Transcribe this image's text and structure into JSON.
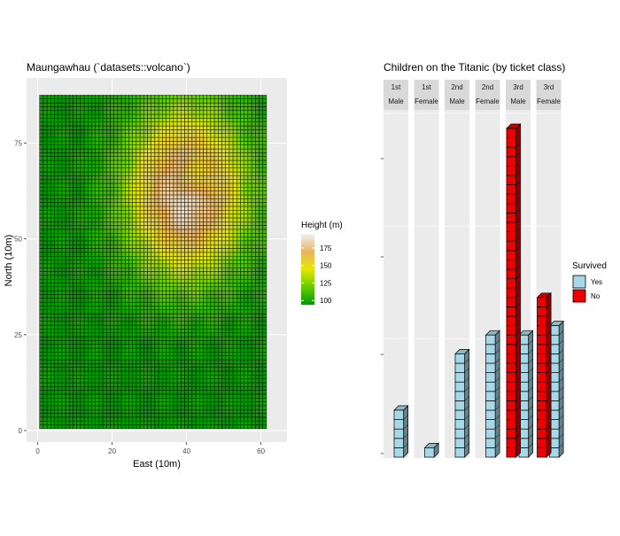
{
  "chart_data": [
    {
      "type": "heatmap",
      "title": "Maungawhau (`datasets::volcano`)",
      "xlabel": "East (10m)",
      "ylabel": "North (10m)",
      "x_ticks": [
        0,
        20,
        40,
        60
      ],
      "y_ticks": [
        0,
        25,
        50,
        75
      ],
      "xlim": [
        -3,
        67
      ],
      "ylim": [
        -3,
        92
      ],
      "grid": [
        61,
        87
      ],
      "legend": {
        "title": "Height (m)",
        "ticks": [
          100,
          125,
          150,
          175
        ],
        "range": [
          94,
          195
        ],
        "placement": "right",
        "colors": [
          "#009900",
          "#66cc00",
          "#e6e600",
          "#e8b363",
          "#f2f2f2"
        ]
      },
      "elevation_model": {
        "base": 95,
        "peak": {
          "x": 40,
          "y": 62,
          "height": 190
        },
        "crater": {
          "x": 42,
          "y": 66,
          "depth": 30
        }
      }
    },
    {
      "type": "bar",
      "title": "Children on the Titanic (by ticket class)",
      "facets": [
        {
          "class": "1st",
          "sex": "Male"
        },
        {
          "class": "1st",
          "sex": "Female"
        },
        {
          "class": "2nd",
          "sex": "Male"
        },
        {
          "class": "2nd",
          "sex": "Female"
        },
        {
          "class": "3rd",
          "sex": "Male"
        },
        {
          "class": "3rd",
          "sex": "Female"
        }
      ],
      "series": [
        {
          "name": "Yes",
          "color": "#a6d8e7",
          "values": [
            5,
            1,
            11,
            13,
            13,
            14
          ]
        },
        {
          "name": "No",
          "color": "#ee0000",
          "values": [
            0,
            0,
            0,
            0,
            35,
            17
          ]
        }
      ],
      "ylim": [
        0,
        36
      ],
      "legend": {
        "title": "Survived",
        "placement": "right"
      }
    }
  ]
}
